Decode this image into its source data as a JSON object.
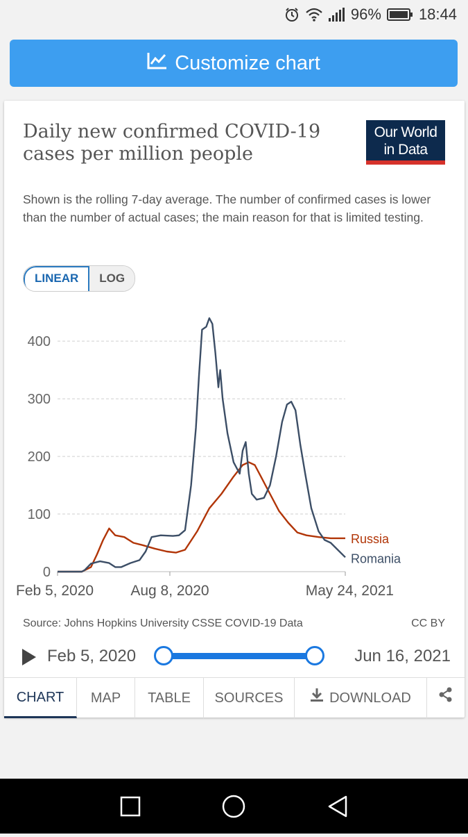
{
  "status": {
    "battery": "96%",
    "time": "18:44"
  },
  "customize_label": "Customize chart",
  "card": {
    "title": "Daily new confirmed COVID-19 cases per million people",
    "subtitle": "Shown is the rolling 7-day average. The number of confirmed cases is lower than the number of actual cases; the main reason for that is limited testing.",
    "logo_line1": "Our World",
    "logo_line2": "in Data",
    "scale": {
      "linear": "LINEAR",
      "log": "LOG"
    },
    "source": "Source: Johns Hopkins University CSSE COVID-19 Data",
    "license": "CC BY",
    "timeline": {
      "start": "Feb 5, 2020",
      "end": "Jun 16, 2021"
    },
    "tabs": {
      "chart": "CHART",
      "map": "MAP",
      "table": "TABLE",
      "sources": "SOURCES",
      "download": "DOWNLOAD"
    }
  },
  "chart_data": {
    "type": "line",
    "title": "Daily new confirmed COVID-19 cases per million people",
    "ylim": [
      0,
      440
    ],
    "yticks": [
      0,
      100,
      200,
      300,
      400
    ],
    "xlim_days": [
      0,
      474
    ],
    "xtick_labels": [
      {
        "label": "Feb 5, 2020",
        "day": 0
      },
      {
        "label": "Aug 8, 2020",
        "day": 185
      },
      {
        "label": "May 24, 2021",
        "day": 474
      }
    ],
    "series": [
      {
        "name": "Russia",
        "color": "#b13507",
        "points": [
          [
            0,
            0
          ],
          [
            40,
            0
          ],
          [
            55,
            8
          ],
          [
            65,
            30
          ],
          [
            75,
            55
          ],
          [
            85,
            75
          ],
          [
            95,
            63
          ],
          [
            110,
            60
          ],
          [
            125,
            50
          ],
          [
            140,
            46
          ],
          [
            160,
            40
          ],
          [
            180,
            35
          ],
          [
            195,
            33
          ],
          [
            210,
            38
          ],
          [
            230,
            70
          ],
          [
            250,
            110
          ],
          [
            270,
            135
          ],
          [
            290,
            165
          ],
          [
            305,
            185
          ],
          [
            315,
            190
          ],
          [
            325,
            185
          ],
          [
            335,
            165
          ],
          [
            350,
            135
          ],
          [
            365,
            105
          ],
          [
            380,
            85
          ],
          [
            395,
            68
          ],
          [
            410,
            63
          ],
          [
            430,
            60
          ],
          [
            450,
            58
          ],
          [
            474,
            58
          ]
        ]
      },
      {
        "name": "Romania",
        "color": "#3c4e66",
        "points": [
          [
            0,
            0
          ],
          [
            40,
            0
          ],
          [
            45,
            3
          ],
          [
            55,
            14
          ],
          [
            70,
            18
          ],
          [
            85,
            15
          ],
          [
            95,
            8
          ],
          [
            105,
            8
          ],
          [
            120,
            15
          ],
          [
            135,
            20
          ],
          [
            145,
            35
          ],
          [
            155,
            60
          ],
          [
            170,
            63
          ],
          [
            190,
            62
          ],
          [
            200,
            63
          ],
          [
            210,
            72
          ],
          [
            220,
            150
          ],
          [
            228,
            250
          ],
          [
            233,
            340
          ],
          [
            238,
            420
          ],
          [
            245,
            425
          ],
          [
            250,
            440
          ],
          [
            255,
            430
          ],
          [
            260,
            380
          ],
          [
            265,
            320
          ],
          [
            268,
            350
          ],
          [
            272,
            300
          ],
          [
            280,
            240
          ],
          [
            290,
            190
          ],
          [
            300,
            170
          ],
          [
            305,
            210
          ],
          [
            310,
            225
          ],
          [
            315,
            170
          ],
          [
            320,
            135
          ],
          [
            328,
            125
          ],
          [
            340,
            128
          ],
          [
            350,
            150
          ],
          [
            360,
            200
          ],
          [
            370,
            260
          ],
          [
            378,
            290
          ],
          [
            385,
            295
          ],
          [
            392,
            280
          ],
          [
            400,
            220
          ],
          [
            408,
            170
          ],
          [
            418,
            110
          ],
          [
            430,
            70
          ],
          [
            440,
            55
          ],
          [
            450,
            50
          ],
          [
            474,
            25
          ]
        ]
      }
    ]
  }
}
